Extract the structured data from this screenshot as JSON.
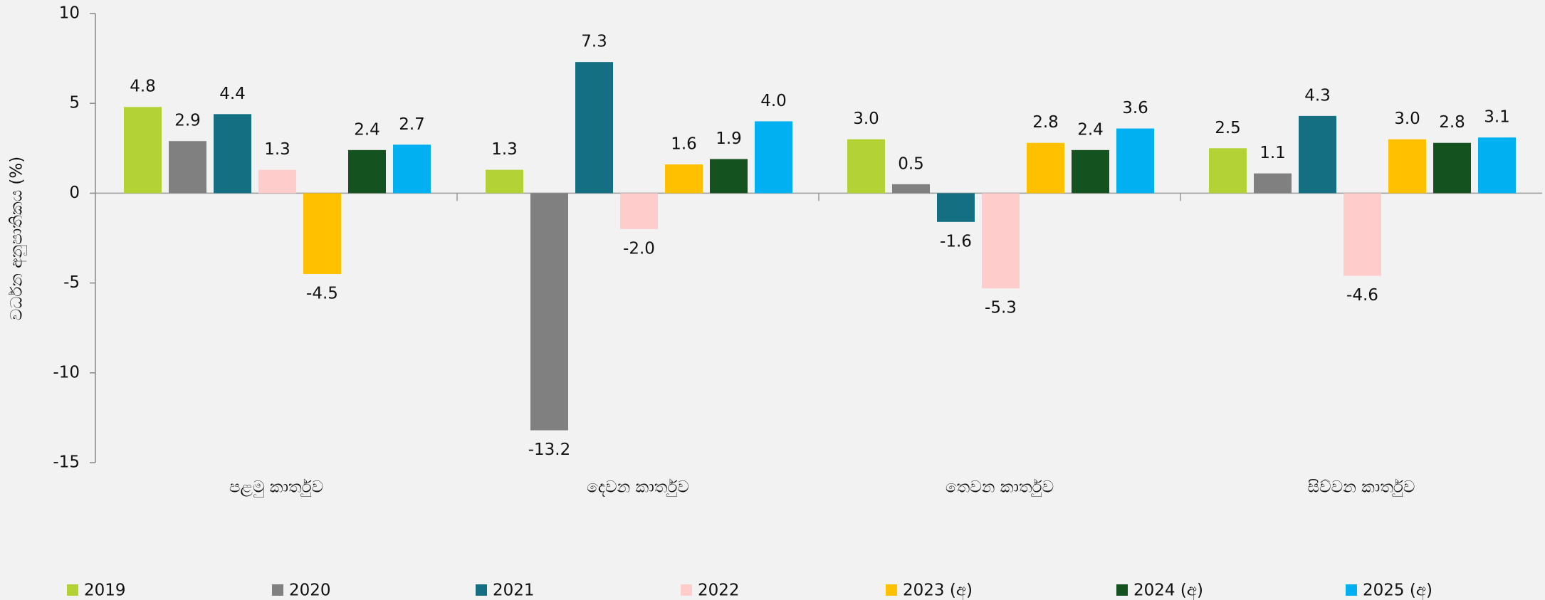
{
  "chart_data": {
    "type": "bar",
    "y_label": "වර්ධන අනුපාතිකය (%)",
    "categories": [
      "පළමු කාර්තුව",
      "දෙවන කාර්තුව",
      "තෙවන කාර්තුව",
      "සිව්වන කාර්තුව"
    ],
    "series": [
      {
        "name": "2019",
        "color": "#b2d235",
        "values": [
          4.8,
          1.3,
          3.0,
          2.5
        ],
        "value_labels": [
          "4.8",
          "1.3",
          "3.0",
          "2.5"
        ]
      },
      {
        "name": "2020",
        "color": "#808080",
        "values": [
          2.9,
          -13.2,
          0.5,
          1.1
        ],
        "value_labels": [
          "2.9",
          "-13.2",
          "0.5",
          "1.1"
        ]
      },
      {
        "name": "2021",
        "color": "#156f82",
        "values": [
          4.4,
          7.3,
          -1.6,
          4.3
        ],
        "value_labels": [
          "4.4",
          "7.3",
          "-1.6",
          "4.3"
        ]
      },
      {
        "name": "2022",
        "color": "#ffcccc",
        "values": [
          1.3,
          -2.0,
          -5.3,
          -4.6
        ],
        "value_labels": [
          "1.3",
          "-2.0",
          "-5.3",
          "-4.6"
        ]
      },
      {
        "name": "2023 (අ)",
        "color": "#ffc000",
        "values": [
          -4.5,
          1.6,
          2.8,
          3.0
        ],
        "value_labels": [
          "-4.5",
          "1.6",
          "2.8",
          "3.0"
        ]
      },
      {
        "name": "2024 (අ)",
        "color": "#145220",
        "values": [
          2.4,
          1.9,
          2.4,
          2.8
        ],
        "value_labels": [
          "2.4",
          "1.9",
          "2.4",
          "2.8"
        ]
      },
      {
        "name": "2025 (අ)",
        "color": "#00b0f0",
        "values": [
          2.7,
          4.0,
          3.6,
          3.1
        ],
        "value_labels": [
          "2.7",
          "4.0",
          "3.6",
          "3.1"
        ]
      }
    ],
    "ylim": [
      -15,
      10
    ],
    "yticks": [
      10,
      5,
      0,
      -5,
      -10,
      -15
    ],
    "legend": "bottom"
  }
}
